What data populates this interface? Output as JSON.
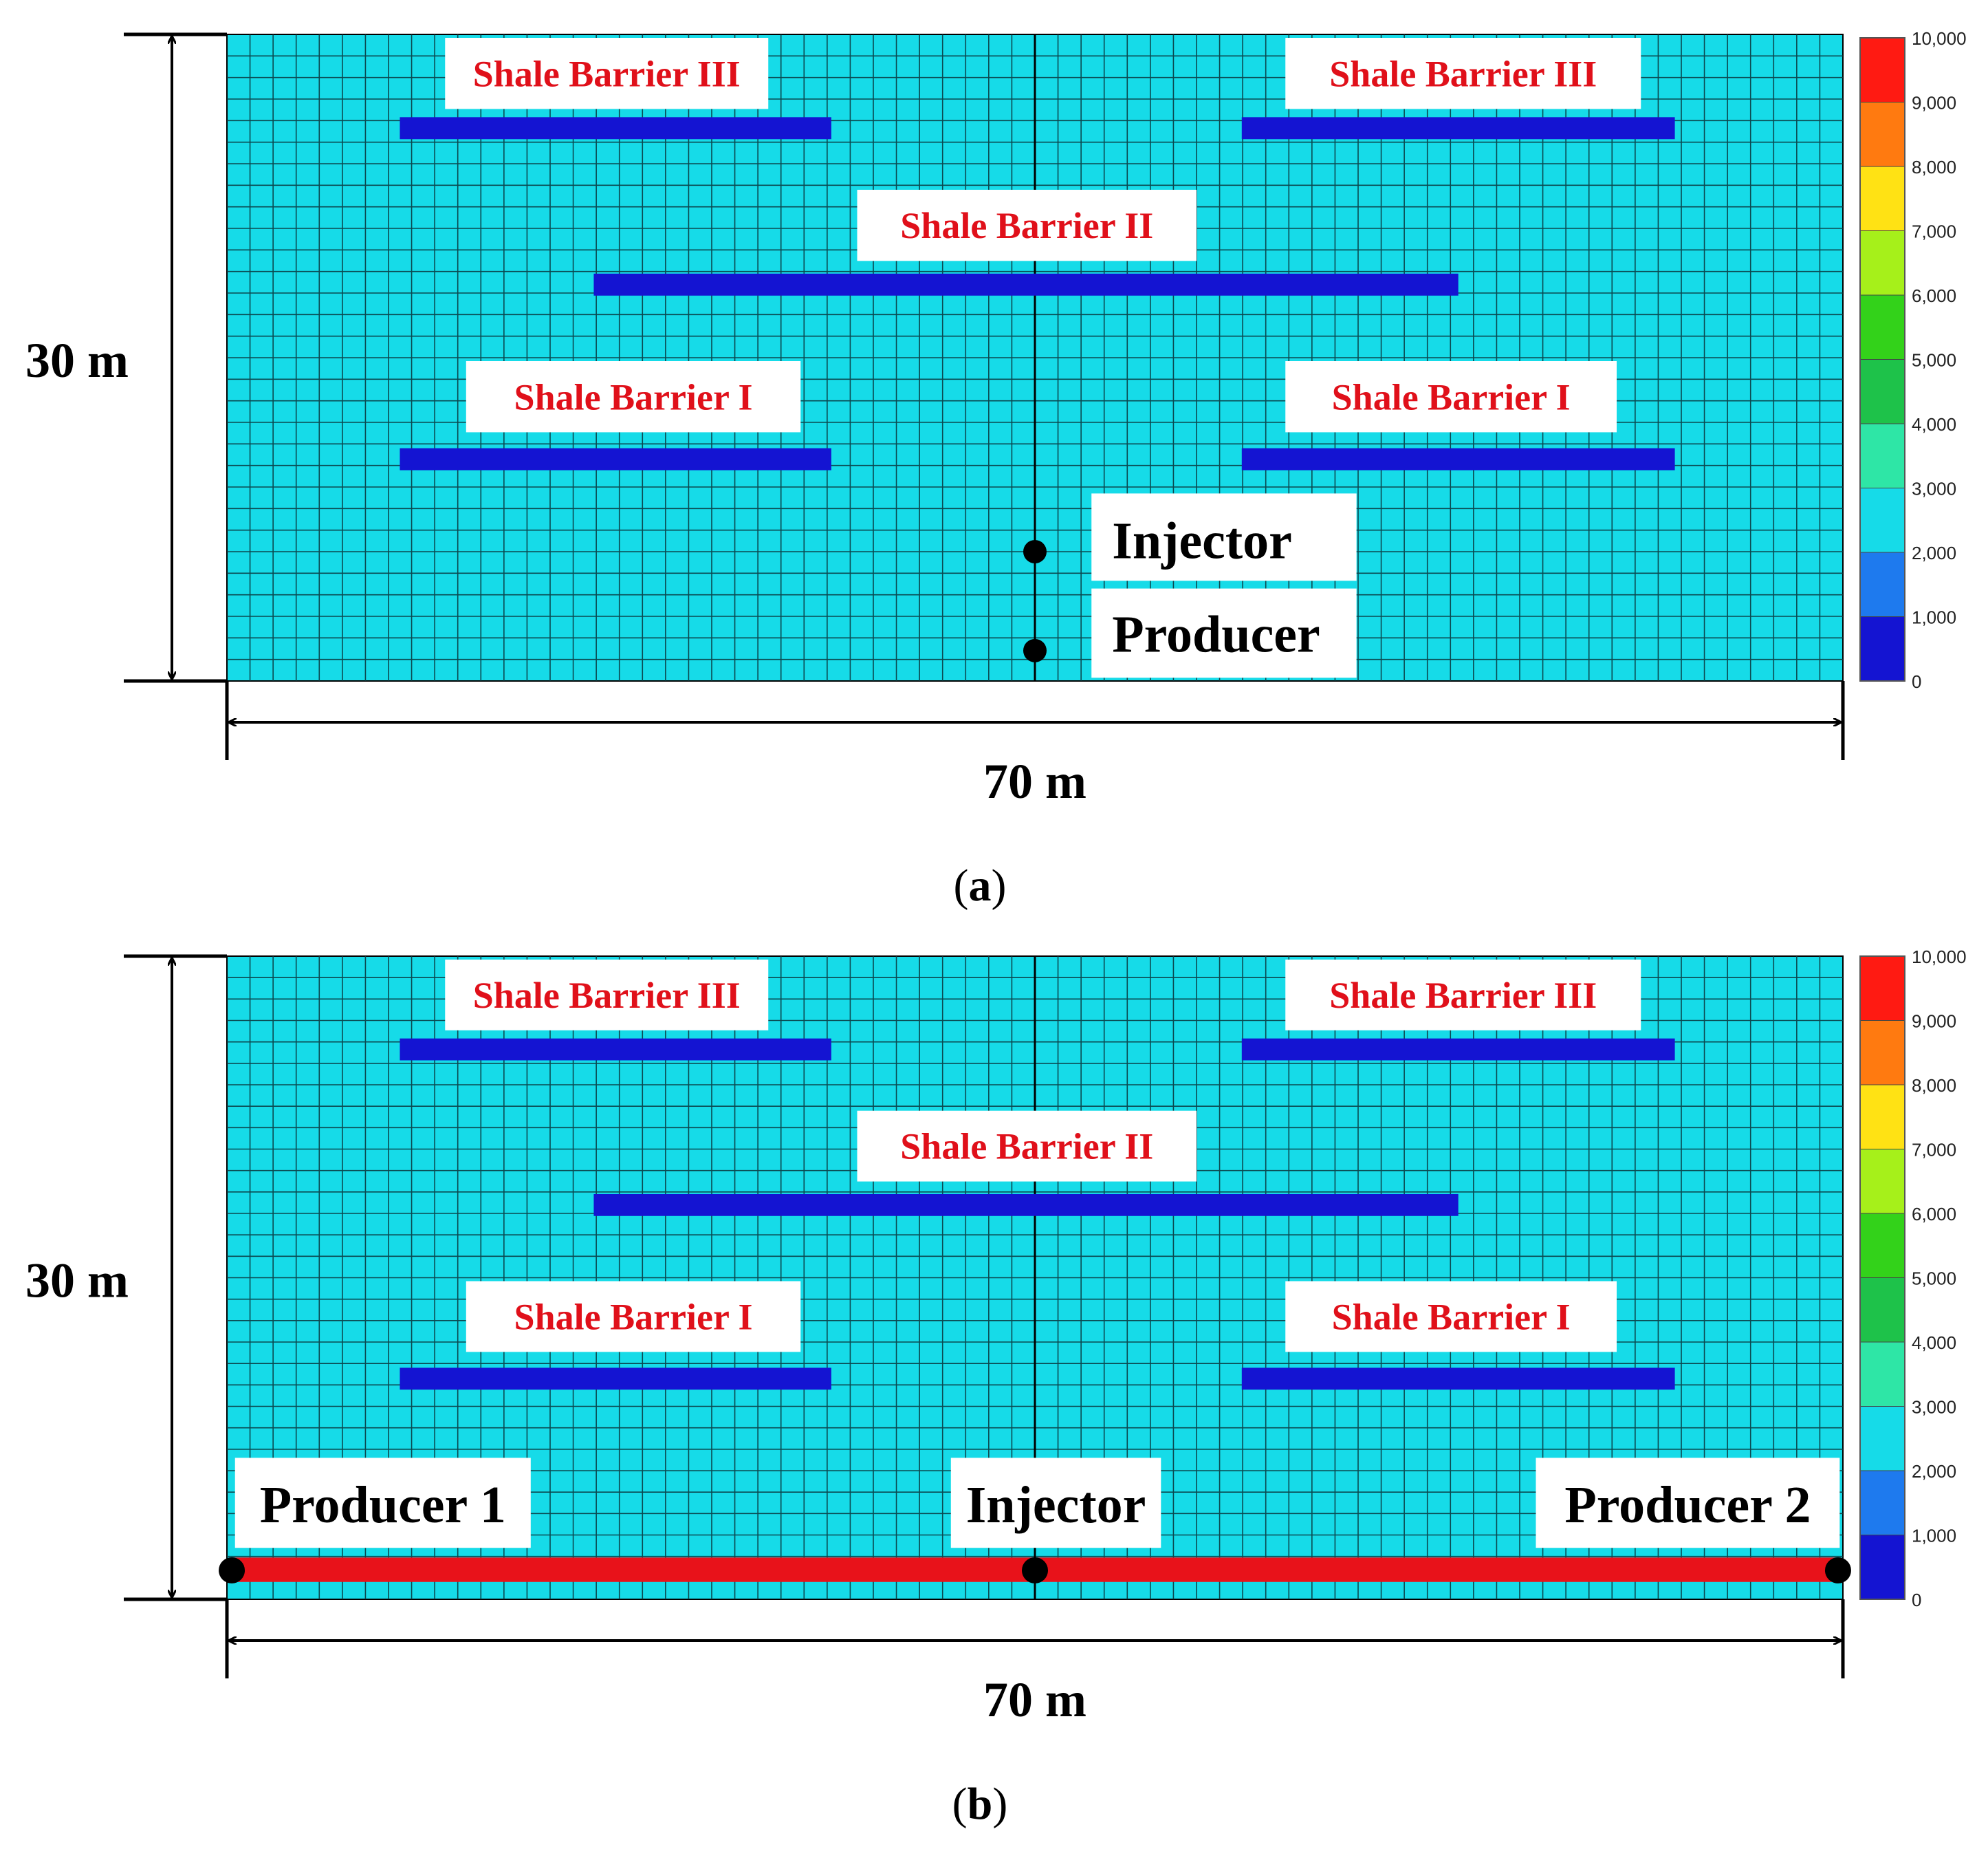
{
  "panels": [
    {
      "caption": "a",
      "height_label": "30 m",
      "width_label": "70 m",
      "barrier_labels": [
        "Shale Barrier III",
        "Shale Barrier III",
        "Shale Barrier II",
        "Shale Barrier I",
        "Shale Barrier I"
      ],
      "well_labels": [
        "Injector",
        "Producer"
      ],
      "colorbar_ticks": [
        "10,000",
        "9,000",
        "8,000",
        "7,000",
        "6,000",
        "5,000",
        "4,000",
        "3,000",
        "2,000",
        "1,000",
        "0"
      ]
    },
    {
      "caption": "b",
      "height_label": "30 m",
      "width_label": "70 m",
      "barrier_labels": [
        "Shale Barrier III",
        "Shale Barrier III",
        "Shale Barrier II",
        "Shale Barrier I",
        "Shale Barrier I"
      ],
      "well_labels": [
        "Producer 1",
        "Injector",
        "Producer 2"
      ],
      "colorbar_ticks": [
        "10,000",
        "9,000",
        "8,000",
        "7,000",
        "6,000",
        "5,000",
        "4,000",
        "3,000",
        "2,000",
        "1,000",
        "0"
      ]
    }
  ],
  "colors": {
    "matrix": "#16dbe8",
    "shale": "#1414d2",
    "well_line": "#e8121a",
    "label_text": "#e0101a",
    "colorbar": [
      "#ff1a12",
      "#ff7a10",
      "#ffe214",
      "#a6f01a",
      "#33d21a",
      "#1ec24a",
      "#2ee6a6",
      "#16dbe8",
      "#1e7aee",
      "#1414d2"
    ]
  }
}
